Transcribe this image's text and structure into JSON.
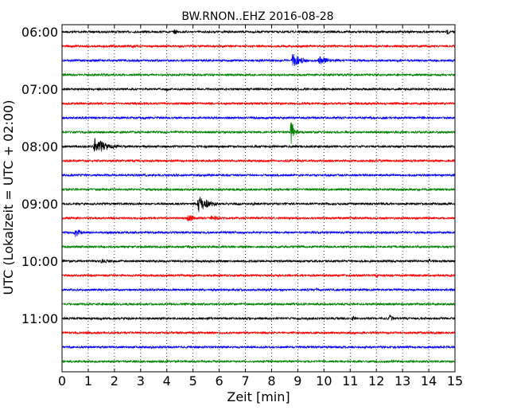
{
  "chart_data": {
    "type": "line",
    "title": "BW.RNON..EHZ 2016-08-28",
    "xlabel": "Zeit  [min]",
    "ylabel": "UTC (Lokalzeit = UTC + 02:00)",
    "xlim": [
      0,
      15
    ],
    "x_ticks": [
      0,
      1,
      2,
      3,
      4,
      5,
      6,
      7,
      8,
      9,
      10,
      11,
      12,
      13,
      14,
      15
    ],
    "y_tick_labels": [
      "06:00",
      "07:00",
      "08:00",
      "09:00",
      "10:00",
      "11:00"
    ],
    "grid": "vertical dotted",
    "trace_interval_min": 15,
    "trace_colors": [
      "#000000",
      "#ff0000",
      "#0000ff",
      "#008000"
    ],
    "traces": [
      {
        "start": "06:00",
        "color": "#000000",
        "events": [
          {
            "min": 4.3,
            "amp": 4
          },
          {
            "min": 14.7,
            "amp": 4
          }
        ]
      },
      {
        "start": "06:15",
        "color": "#ff0000",
        "events": [
          {
            "min": 2.7,
            "amp": 3
          }
        ]
      },
      {
        "start": "06:30",
        "color": "#0000ff",
        "events": [
          {
            "min": 8.8,
            "amp": 9,
            "dur": 1.0
          },
          {
            "min": 9.8,
            "amp": 6,
            "dur": 1.2
          }
        ]
      },
      {
        "start": "06:45",
        "color": "#008000",
        "events": [
          {
            "min": 1.5,
            "amp": 2,
            "dur": 2.0
          }
        ]
      },
      {
        "start": "07:00",
        "color": "#000000",
        "events": [
          {
            "min": 4.0,
            "amp": 3
          }
        ]
      },
      {
        "start": "07:15",
        "color": "#ff0000",
        "events": []
      },
      {
        "start": "07:30",
        "color": "#0000ff",
        "events": [
          {
            "min": 3.1,
            "amp": 3
          }
        ]
      },
      {
        "start": "07:45",
        "color": "#008000",
        "events": [
          {
            "min": 8.75,
            "amp": 18
          }
        ]
      },
      {
        "start": "08:00",
        "color": "#000000",
        "events": [
          {
            "min": 1.25,
            "amp": 11,
            "dur": 1.5
          }
        ]
      },
      {
        "start": "08:15",
        "color": "#ff0000",
        "events": []
      },
      {
        "start": "08:30",
        "color": "#0000ff",
        "events": []
      },
      {
        "start": "08:45",
        "color": "#008000",
        "events": []
      },
      {
        "start": "09:00",
        "color": "#000000",
        "events": [
          {
            "min": 5.2,
            "amp": 11,
            "dur": 1.2
          },
          {
            "min": 7.3,
            "amp": 3
          },
          {
            "min": 8.5,
            "amp": 3
          }
        ]
      },
      {
        "start": "09:15",
        "color": "#ff0000",
        "events": [
          {
            "min": 4.8,
            "amp": 5,
            "dur": 0.8
          },
          {
            "min": 5.7,
            "amp": 4,
            "dur": 1.2
          }
        ]
      },
      {
        "start": "09:30",
        "color": "#0000ff",
        "events": [
          {
            "min": 0.5,
            "amp": 6,
            "dur": 0.8
          }
        ]
      },
      {
        "start": "09:45",
        "color": "#008000",
        "events": []
      },
      {
        "start": "10:00",
        "color": "#000000",
        "events": [
          {
            "min": 1.5,
            "amp": 3,
            "dur": 2.0
          },
          {
            "min": 10.7,
            "amp": 2
          },
          {
            "min": 14.0,
            "amp": 4
          }
        ]
      },
      {
        "start": "10:15",
        "color": "#ff0000",
        "events": [
          {
            "min": 12.0,
            "amp": 4
          }
        ]
      },
      {
        "start": "10:30",
        "color": "#0000ff",
        "events": [
          {
            "min": 9.7,
            "amp": 3
          }
        ]
      },
      {
        "start": "10:45",
        "color": "#008000",
        "events": []
      },
      {
        "start": "11:00",
        "color": "#000000",
        "events": [
          {
            "min": 9.4,
            "amp": 3
          },
          {
            "min": 11.1,
            "amp": 4
          },
          {
            "min": 12.5,
            "amp": 6
          }
        ]
      },
      {
        "start": "11:15",
        "color": "#ff0000",
        "events": []
      },
      {
        "start": "11:30",
        "color": "#0000ff",
        "events": []
      },
      {
        "start": "11:45",
        "color": "#008000",
        "events": []
      }
    ]
  }
}
